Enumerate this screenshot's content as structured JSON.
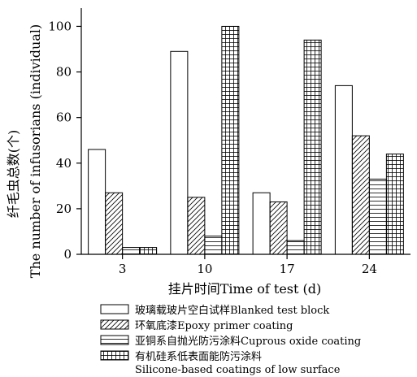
{
  "chart_data": {
    "type": "bar",
    "title": "",
    "xlabel": "挂片时间Time of test (d)",
    "ylabel_lines": [
      "纤毛虫总数(个)",
      "The number of infusorians (individual)"
    ],
    "categories": [
      "3",
      "10",
      "17",
      "24"
    ],
    "ylim": [
      0,
      108
    ],
    "yticks": [
      0,
      20,
      40,
      60,
      80,
      100
    ],
    "grid": false,
    "legend_position": "bottom",
    "series": [
      {
        "name": "玻璃载玻片空白试样Blanked test block",
        "pattern": "none",
        "values": [
          46,
          89,
          27,
          74
        ]
      },
      {
        "name": "环氧底漆Epoxy primer coating",
        "pattern": "diagonal",
        "values": [
          27,
          25,
          23,
          52
        ]
      },
      {
        "name": "亚铜系自抛光防污涂料Cuprous oxide coating",
        "pattern": "horizontal",
        "values": [
          3,
          8,
          6,
          33
        ]
      },
      {
        "name": "有机硅系低表面能防污涂料",
        "name_line2": "Silicone-based coatings of low surface",
        "pattern": "grid",
        "values": [
          3,
          100,
          94,
          44
        ]
      }
    ]
  }
}
